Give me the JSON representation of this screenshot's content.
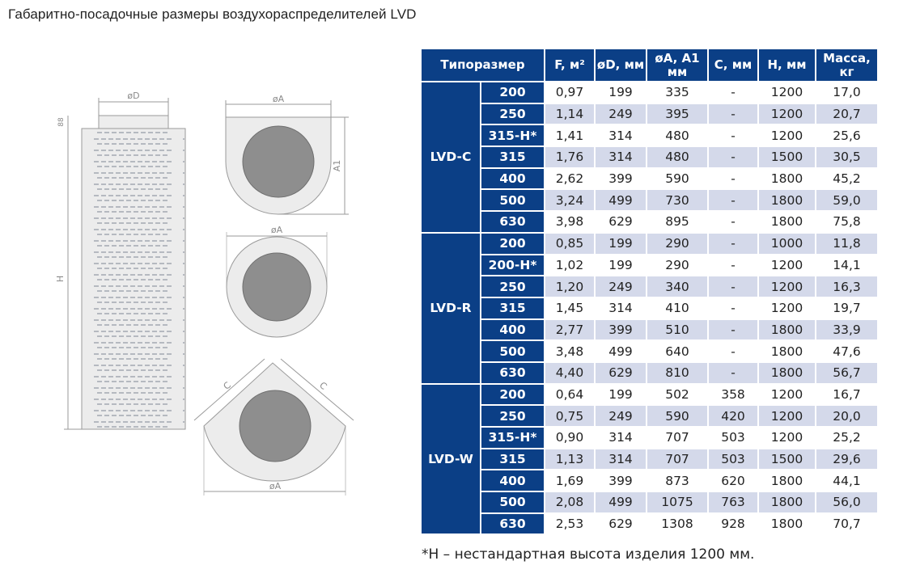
{
  "title": "Габаритно-посадочные размеры воздухораспределителей LVD",
  "drawing_labels": {
    "dim_od": "øD",
    "dim_a": "øA",
    "dim_a1": "A1",
    "dim_h": "H",
    "dim_88": "88",
    "dim_c": "C"
  },
  "table": {
    "headers": {
      "tip": "Типоразмер",
      "f_line1": "F, м²",
      "d_line1": "øD, мм",
      "a_line1": "øA, A1",
      "a_line2": "мм",
      "c_line1": "C, мм",
      "h_line1": "H, мм",
      "m_line1": "Масса,",
      "m_line2": "кг"
    },
    "groups": [
      {
        "series": "LVD-C",
        "rows": [
          {
            "size": "200",
            "f": "0,97",
            "d": "199",
            "a": "335",
            "c": "-",
            "h": "1200",
            "m": "17,0"
          },
          {
            "size": "250",
            "f": "1,14",
            "d": "249",
            "a": "395",
            "c": "-",
            "h": "1200",
            "m": "20,7"
          },
          {
            "size": "315-H*",
            "f": "1,41",
            "d": "314",
            "a": "480",
            "c": "-",
            "h": "1200",
            "m": "25,6"
          },
          {
            "size": "315",
            "f": "1,76",
            "d": "314",
            "a": "480",
            "c": "-",
            "h": "1500",
            "m": "30,5"
          },
          {
            "size": "400",
            "f": "2,62",
            "d": "399",
            "a": "590",
            "c": "-",
            "h": "1800",
            "m": "45,2"
          },
          {
            "size": "500",
            "f": "3,24",
            "d": "499",
            "a": "730",
            "c": "-",
            "h": "1800",
            "m": "59,0"
          },
          {
            "size": "630",
            "f": "3,98",
            "d": "629",
            "a": "895",
            "c": "-",
            "h": "1800",
            "m": "75,8"
          }
        ]
      },
      {
        "series": "LVD-R",
        "rows": [
          {
            "size": "200",
            "f": "0,85",
            "d": "199",
            "a": "290",
            "c": "-",
            "h": "1000",
            "m": "11,8"
          },
          {
            "size": "200-H*",
            "f": "1,02",
            "d": "199",
            "a": "290",
            "c": "-",
            "h": "1200",
            "m": "14,1"
          },
          {
            "size": "250",
            "f": "1,20",
            "d": "249",
            "a": "340",
            "c": "-",
            "h": "1200",
            "m": "16,3"
          },
          {
            "size": "315",
            "f": "1,45",
            "d": "314",
            "a": "410",
            "c": "-",
            "h": "1200",
            "m": "19,7"
          },
          {
            "size": "400",
            "f": "2,77",
            "d": "399",
            "a": "510",
            "c": "-",
            "h": "1800",
            "m": "33,9"
          },
          {
            "size": "500",
            "f": "3,48",
            "d": "499",
            "a": "640",
            "c": "-",
            "h": "1800",
            "m": "47,6"
          },
          {
            "size": "630",
            "f": "4,40",
            "d": "629",
            "a": "810",
            "c": "-",
            "h": "1800",
            "m": "56,7"
          }
        ]
      },
      {
        "series": "LVD-W",
        "rows": [
          {
            "size": "200",
            "f": "0,64",
            "d": "199",
            "a": "502",
            "c": "358",
            "h": "1200",
            "m": "16,7"
          },
          {
            "size": "250",
            "f": "0,75",
            "d": "249",
            "a": "590",
            "c": "420",
            "h": "1200",
            "m": "20,0"
          },
          {
            "size": "315-H*",
            "f": "0,90",
            "d": "314",
            "a": "707",
            "c": "503",
            "h": "1200",
            "m": "25,2"
          },
          {
            "size": "315",
            "f": "1,13",
            "d": "314",
            "a": "707",
            "c": "503",
            "h": "1500",
            "m": "29,6"
          },
          {
            "size": "400",
            "f": "1,69",
            "d": "399",
            "a": "873",
            "c": "620",
            "h": "1800",
            "m": "44,1"
          },
          {
            "size": "500",
            "f": "2,08",
            "d": "499",
            "a": "1075",
            "c": "763",
            "h": "1800",
            "m": "56,0"
          },
          {
            "size": "630",
            "f": "2,53",
            "d": "629",
            "a": "1308",
            "c": "928",
            "h": "1800",
            "m": "70,7"
          }
        ]
      }
    ]
  },
  "footnote": "*H – нестандартная высота изделия 1200 мм."
}
